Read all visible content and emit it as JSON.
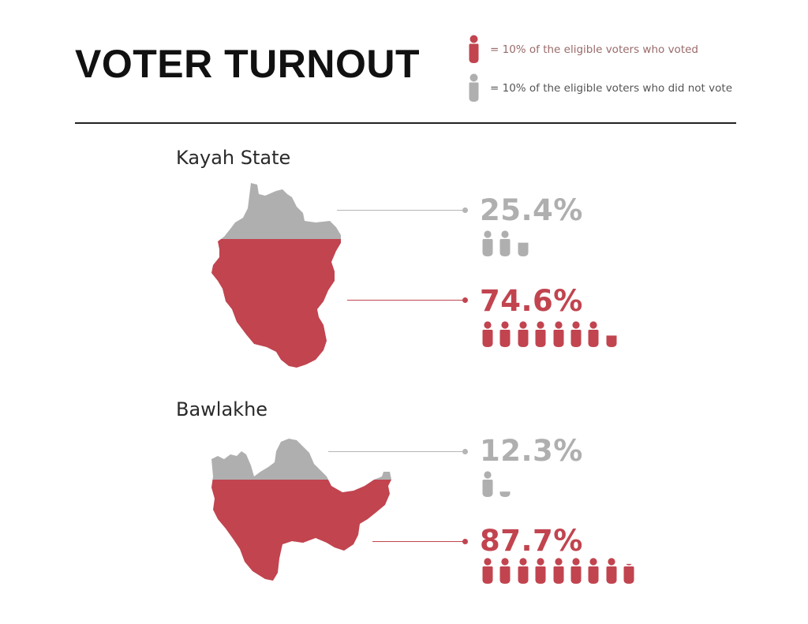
{
  "title": "VOTER TURNOUT",
  "legend": {
    "voted": "= 10% of the eligible voters who voted",
    "not_voted": "= 10% of the eligible voters who did not vote"
  },
  "colors": {
    "voted": "#c1444f",
    "not_voted": "#afafaf",
    "connector_voted": "#c1444f",
    "connector_not_voted": "#b5b5b5"
  },
  "icons": {
    "voted": "person-icon",
    "not_voted": "person-icon",
    "unit_percent": 10
  },
  "chart_data": {
    "type": "pictogram",
    "series": [
      "voted",
      "did not vote"
    ],
    "regions": [
      {
        "name": "Kayah State",
        "not_voted_label": "25.4%",
        "voted_label": "74.6%",
        "not_voted": 25.4,
        "voted": 74.6
      },
      {
        "name": "Bawlakhe",
        "not_voted_label": "12.3%",
        "voted_label": "87.7%",
        "not_voted": 12.3,
        "voted": 87.7
      }
    ]
  }
}
